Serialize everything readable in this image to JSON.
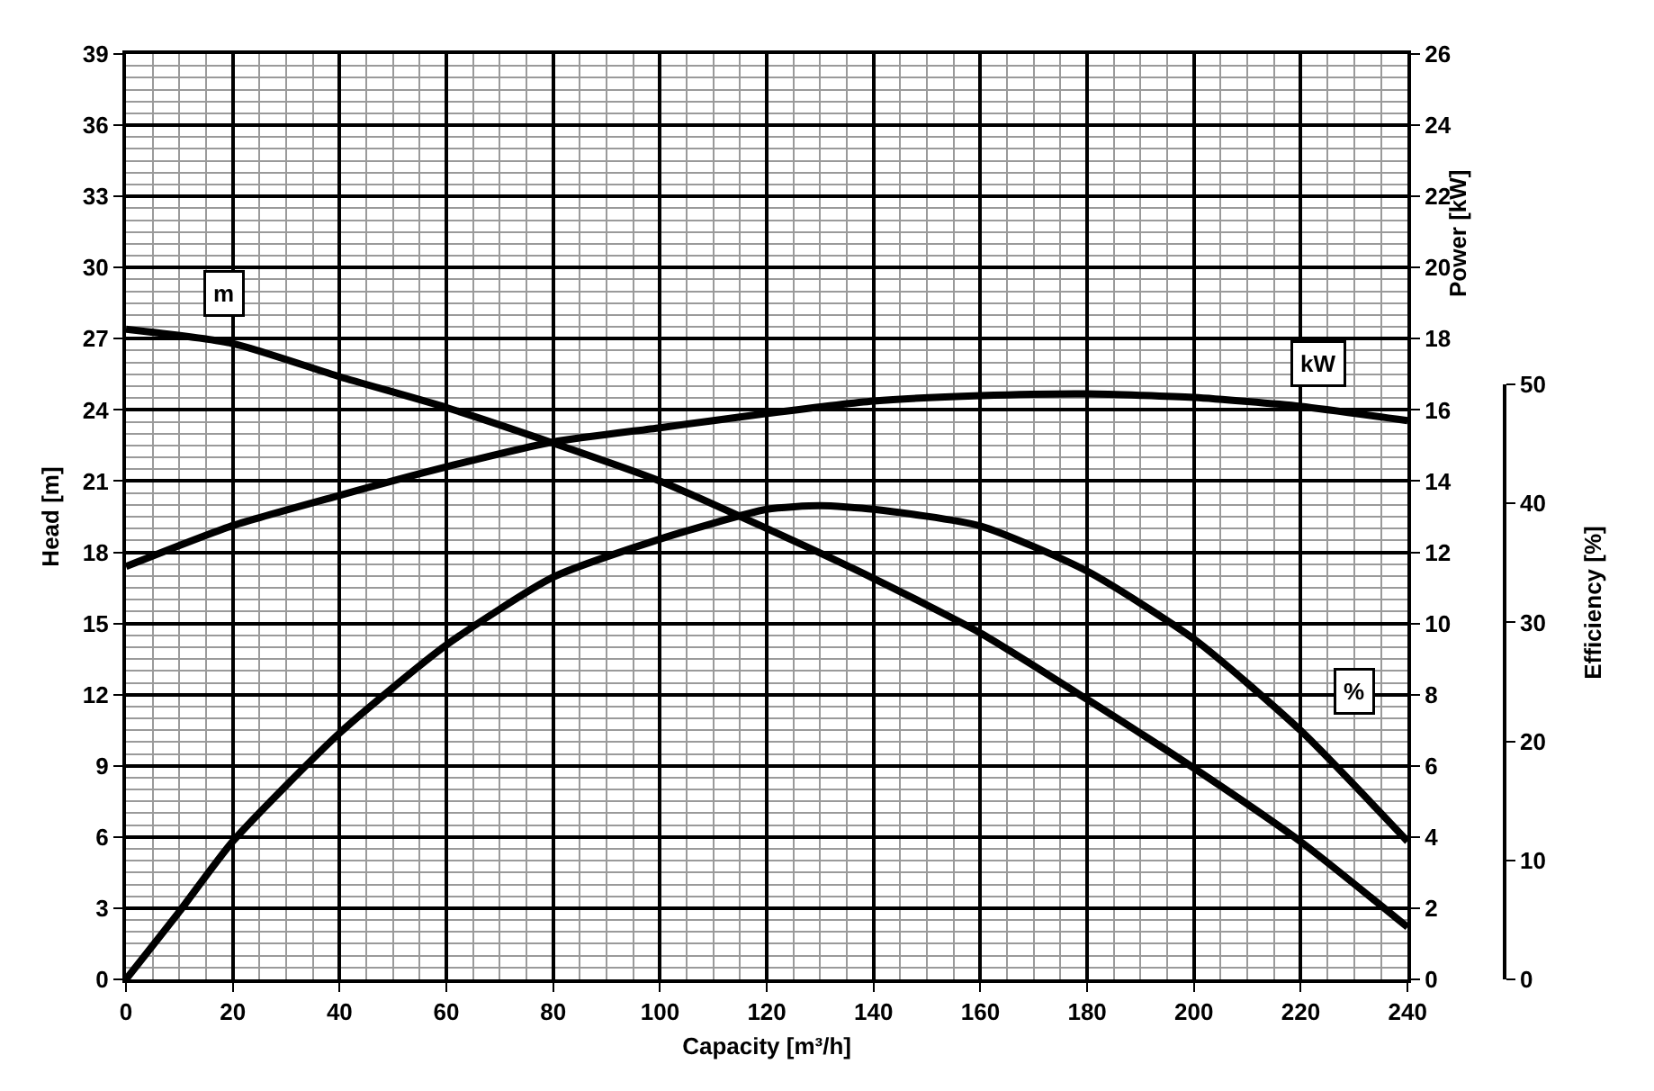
{
  "chart_data": {
    "type": "line",
    "xlabel": "Capacity [m³/h]",
    "ylabel": "Head [m]",
    "y2label": "Power [kW]",
    "y3label": "Efficiency [%]",
    "xlim": [
      0,
      240
    ],
    "xticks": [
      0,
      20,
      40,
      60,
      80,
      100,
      120,
      140,
      160,
      180,
      200,
      220,
      240
    ],
    "ylim": [
      0,
      39
    ],
    "yticks": [
      0,
      3,
      6,
      9,
      12,
      15,
      18,
      21,
      24,
      27,
      30,
      33,
      36,
      39
    ],
    "y2lim": [
      0,
      26
    ],
    "y2ticks": [
      0,
      2,
      4,
      6,
      8,
      10,
      12,
      14,
      16,
      18,
      20,
      22,
      24,
      26
    ],
    "y3lim": [
      0,
      50
    ],
    "y3ticks": [
      0,
      10,
      20,
      30,
      40,
      50
    ],
    "grid": true,
    "legend": false,
    "marker": "none",
    "line_style": "solid",
    "series": [
      {
        "name": "m",
        "color": "#000000",
        "x": [
          0,
          20,
          40,
          60,
          80,
          100,
          120,
          140,
          160,
          180,
          200,
          220,
          240
        ],
        "values": [
          27.4,
          26.8,
          25.4,
          24.1,
          22.6,
          21.0,
          19.0,
          16.9,
          14.6,
          11.8,
          8.9,
          5.8,
          2.2
        ]
      },
      {
        "name": "kW",
        "axis": "y2",
        "color": "#000000",
        "x": [
          0,
          20,
          40,
          60,
          80,
          100,
          120,
          140,
          160,
          180,
          200,
          220,
          240
        ],
        "values": [
          11.6,
          12.75,
          13.6,
          14.4,
          15.1,
          15.5,
          15.9,
          16.25,
          16.4,
          16.45,
          16.35,
          16.1,
          15.7
        ]
      },
      {
        "name": "%",
        "axis": "y3",
        "color": "#000000",
        "x": [
          0,
          10,
          20,
          40,
          60,
          80,
          100,
          120,
          130,
          140,
          160,
          180,
          200,
          220,
          240
        ],
        "values": [
          0,
          5.7,
          11.6,
          20.7,
          28.1,
          33.8,
          37.0,
          39.5,
          39.8,
          39.5,
          38.1,
          34.3,
          28.6,
          20.9,
          11.6
        ]
      }
    ]
  }
}
